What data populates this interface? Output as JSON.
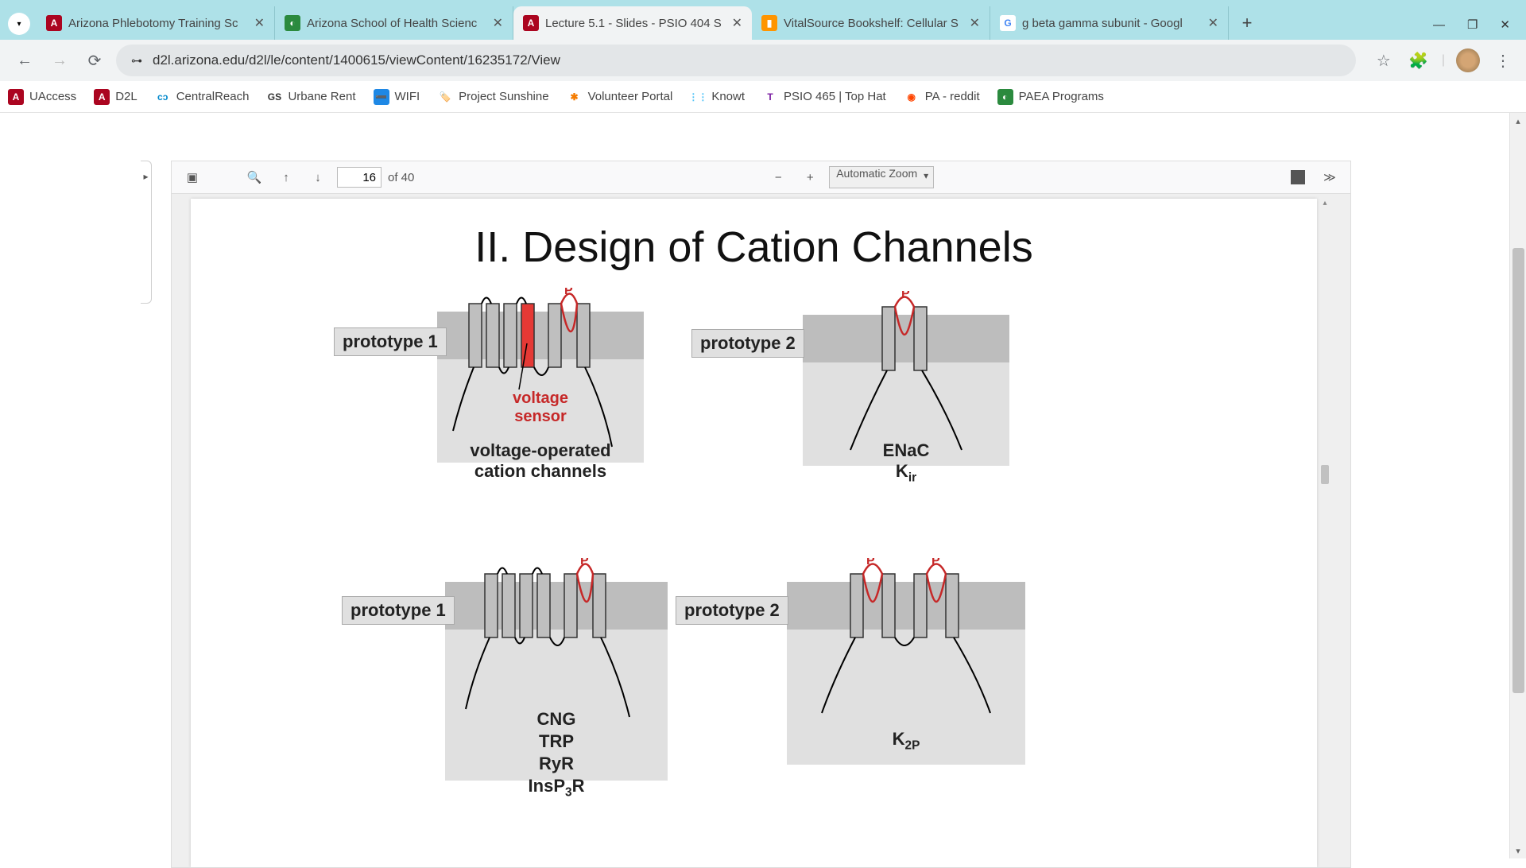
{
  "window": {
    "minimize": "—",
    "maximize": "❐",
    "close": "✕"
  },
  "tabs": [
    {
      "favBg": "#ab0520",
      "favLetter": "A",
      "favColor": "#fff",
      "title": "Arizona Phlebotomy Training Sc",
      "active": false
    },
    {
      "favBg": "#2b8a3e",
      "favLetter": "◐",
      "favColor": "#fff",
      "title": "Arizona School of Health Scienc",
      "active": false
    },
    {
      "favBg": "#ab0520",
      "favLetter": "A",
      "favColor": "#fff",
      "title": "Lecture 5.1 - Slides - PSIO 404 S",
      "active": true
    },
    {
      "favBg": "#ff9500",
      "favLetter": "▮",
      "favColor": "#fff",
      "title": "VitalSource Bookshelf: Cellular S",
      "active": false
    },
    {
      "favBg": "#fff",
      "favLetter": "G",
      "favColor": "#4285f4",
      "title": "g beta gamma subunit - Googl",
      "active": false
    }
  ],
  "url": "d2l.arizona.edu/d2l/le/content/1400615/viewContent/16235172/View",
  "bookmarks": [
    {
      "icoBg": "#ab0520",
      "icoLetter": "A",
      "icoColor": "#fff",
      "label": "UAccess"
    },
    {
      "icoBg": "#ab0520",
      "icoLetter": "A",
      "icoColor": "#fff",
      "label": "D2L"
    },
    {
      "icoBg": "#fff",
      "icoLetter": "cɔ",
      "icoColor": "#0088cc",
      "label": "CentralReach"
    },
    {
      "icoBg": "#fff",
      "icoLetter": "GS",
      "icoColor": "#333",
      "label": "Urbane Rent"
    },
    {
      "icoBg": "#1e88e5",
      "icoLetter": "➖",
      "icoColor": "#fff",
      "label": "WIFI"
    },
    {
      "icoBg": "#fff",
      "icoLetter": "🏷️",
      "icoColor": "#1e88e5",
      "label": "Project Sunshine"
    },
    {
      "icoBg": "#fff",
      "icoLetter": "✱",
      "icoColor": "#f57c00",
      "label": "Volunteer Portal"
    },
    {
      "icoBg": "#fff",
      "icoLetter": "⋮⋮",
      "icoColor": "#4fc3f7",
      "label": "Knowt"
    },
    {
      "icoBg": "#fff",
      "icoLetter": "T",
      "icoColor": "#7b1fa2",
      "label": "PSIO 465 | Top Hat"
    },
    {
      "icoBg": "#fff",
      "icoLetter": "◉",
      "icoColor": "#ff4500",
      "label": "PA - reddit"
    },
    {
      "icoBg": "#2b8a3e",
      "icoLetter": "◐",
      "icoColor": "#fff",
      "label": "PAEA Programs"
    }
  ],
  "viewer": {
    "currentPage": "16",
    "totalPages": "of 40",
    "zoom": "Automatic Zoom"
  },
  "slide": {
    "title": "II. Design of Cation Channels",
    "proto1": "prototype 1",
    "proto2": "prototype 2",
    "p_label": "P",
    "voltage_sensor": "voltage\nsensor",
    "voltage_operated": "voltage-operated\ncation channels",
    "enac": "ENaC",
    "kir": "K",
    "kir_sub": "ir",
    "cng": "CNG",
    "trp": "TRP",
    "ryr": "RyR",
    "insp3r": "InsP",
    "insp3r_sub": "3",
    "insp3r_r": "R",
    "k2p": "K",
    "k2p_sub": "2P"
  },
  "colors": {
    "accent_red": "#c62828",
    "membrane_upper": "#bdbdbd",
    "membrane_lower": "#e0e0e0",
    "helix": "#b0b0b0",
    "helix_border": "#333"
  }
}
